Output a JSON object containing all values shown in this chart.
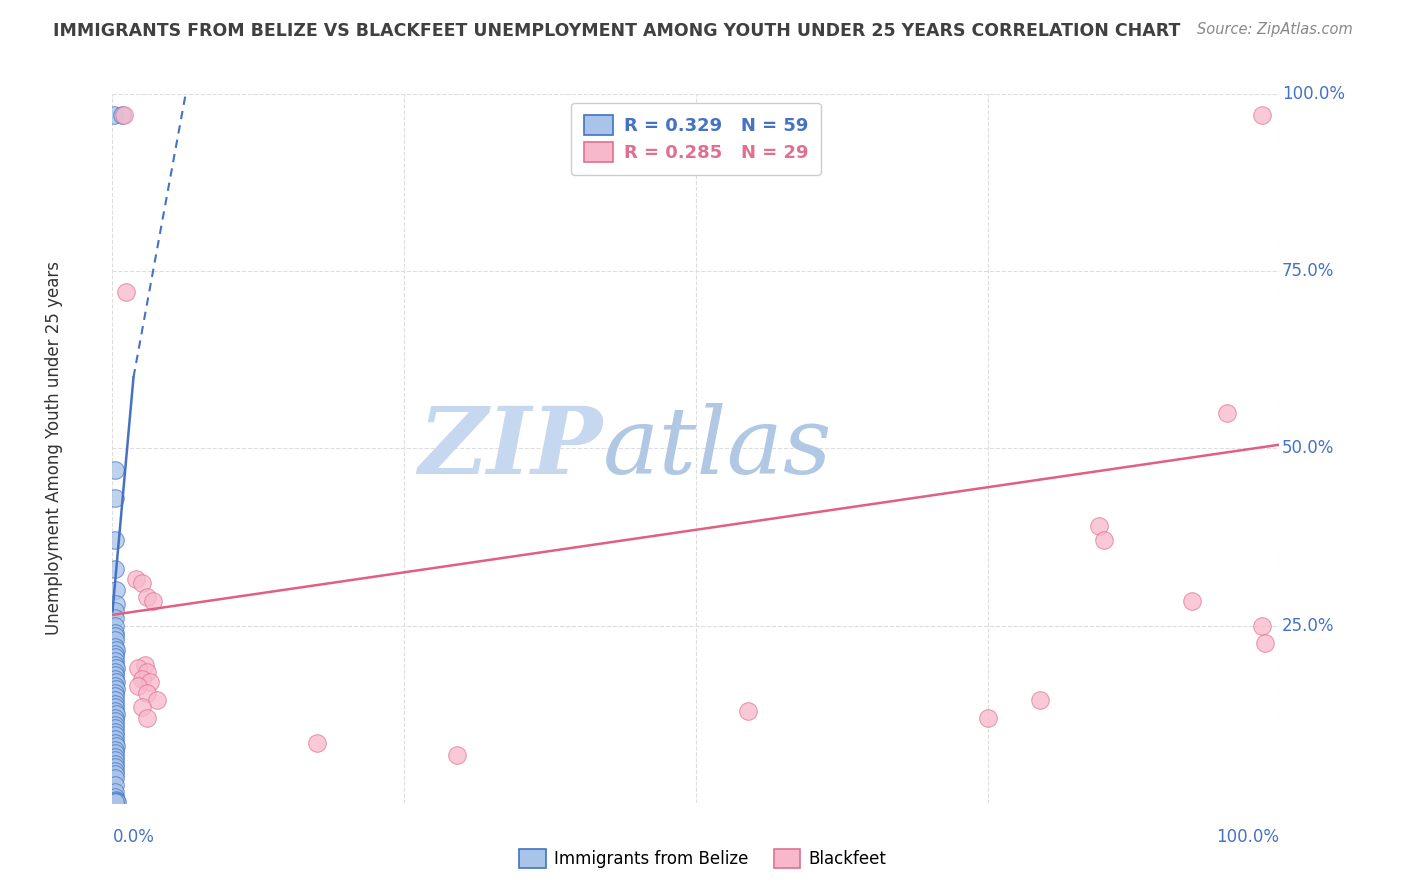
{
  "title": "IMMIGRANTS FROM BELIZE VS BLACKFEET UNEMPLOYMENT AMONG YOUTH UNDER 25 YEARS CORRELATION CHART",
  "source": "Source: ZipAtlas.com",
  "ylabel": "Unemployment Among Youth under 25 years",
  "xlim": [
    0,
    1.0
  ],
  "ylim": [
    0,
    1.0
  ],
  "ytick_positions": [
    1.0,
    0.75,
    0.5,
    0.25
  ],
  "ytick_labels": [
    "100.0%",
    "75.0%",
    "50.0%",
    "25.0%"
  ],
  "blue_scatter": [
    [
      0.001,
      0.97
    ],
    [
      0.008,
      0.97
    ],
    [
      0.002,
      0.47
    ],
    [
      0.002,
      0.43
    ],
    [
      0.002,
      0.37
    ],
    [
      0.002,
      0.33
    ],
    [
      0.003,
      0.3
    ],
    [
      0.003,
      0.28
    ],
    [
      0.002,
      0.27
    ],
    [
      0.002,
      0.26
    ],
    [
      0.002,
      0.25
    ],
    [
      0.002,
      0.24
    ],
    [
      0.002,
      0.235
    ],
    [
      0.002,
      0.23
    ],
    [
      0.002,
      0.22
    ],
    [
      0.003,
      0.215
    ],
    [
      0.002,
      0.21
    ],
    [
      0.002,
      0.205
    ],
    [
      0.002,
      0.2
    ],
    [
      0.002,
      0.195
    ],
    [
      0.003,
      0.19
    ],
    [
      0.002,
      0.185
    ],
    [
      0.002,
      0.18
    ],
    [
      0.002,
      0.175
    ],
    [
      0.003,
      0.17
    ],
    [
      0.002,
      0.165
    ],
    [
      0.003,
      0.16
    ],
    [
      0.002,
      0.155
    ],
    [
      0.002,
      0.15
    ],
    [
      0.002,
      0.145
    ],
    [
      0.002,
      0.14
    ],
    [
      0.002,
      0.135
    ],
    [
      0.002,
      0.13
    ],
    [
      0.003,
      0.125
    ],
    [
      0.002,
      0.12
    ],
    [
      0.002,
      0.115
    ],
    [
      0.002,
      0.11
    ],
    [
      0.002,
      0.105
    ],
    [
      0.002,
      0.1
    ],
    [
      0.002,
      0.095
    ],
    [
      0.002,
      0.09
    ],
    [
      0.002,
      0.085
    ],
    [
      0.003,
      0.08
    ],
    [
      0.002,
      0.075
    ],
    [
      0.002,
      0.07
    ],
    [
      0.002,
      0.065
    ],
    [
      0.002,
      0.06
    ],
    [
      0.002,
      0.055
    ],
    [
      0.002,
      0.05
    ],
    [
      0.002,
      0.045
    ],
    [
      0.002,
      0.04
    ],
    [
      0.002,
      0.035
    ],
    [
      0.002,
      0.025
    ],
    [
      0.002,
      0.015
    ],
    [
      0.002,
      0.008
    ],
    [
      0.003,
      0.004
    ],
    [
      0.003,
      0.002
    ],
    [
      0.004,
      0.001
    ],
    [
      0.002,
      0.001
    ]
  ],
  "pink_scatter": [
    [
      0.01,
      0.97
    ],
    [
      0.012,
      0.72
    ],
    [
      0.02,
      0.315
    ],
    [
      0.025,
      0.31
    ],
    [
      0.03,
      0.29
    ],
    [
      0.035,
      0.285
    ],
    [
      0.028,
      0.195
    ],
    [
      0.022,
      0.19
    ],
    [
      0.03,
      0.185
    ],
    [
      0.025,
      0.175
    ],
    [
      0.032,
      0.17
    ],
    [
      0.022,
      0.165
    ],
    [
      0.03,
      0.155
    ],
    [
      0.038,
      0.145
    ],
    [
      0.025,
      0.135
    ],
    [
      0.03,
      0.12
    ],
    [
      0.175,
      0.085
    ],
    [
      0.295,
      0.068
    ],
    [
      0.545,
      0.13
    ],
    [
      0.795,
      0.145
    ],
    [
      0.845,
      0.39
    ],
    [
      0.85,
      0.37
    ],
    [
      0.925,
      0.285
    ],
    [
      0.955,
      0.55
    ],
    [
      0.985,
      0.97
    ],
    [
      0.985,
      0.25
    ],
    [
      0.988,
      0.225
    ],
    [
      0.75,
      0.12
    ]
  ],
  "blue_line_solid": {
    "x": [
      0.0,
      0.018
    ],
    "y": [
      0.27,
      0.6
    ],
    "color": "#4472c4"
  },
  "blue_line_dashed": {
    "x": [
      0.018,
      0.065
    ],
    "y": [
      0.6,
      1.02
    ],
    "color": "#4472c4"
  },
  "pink_line": {
    "x": [
      0.0,
      1.0
    ],
    "y": [
      0.265,
      0.505
    ],
    "color": "#e06080"
  },
  "background_color": "#ffffff",
  "grid_color": "#dddddd",
  "title_color": "#404040",
  "watermark": "ZIPatlas",
  "watermark_zip_color": "#c8d8ee",
  "watermark_atlas_color": "#b8c8de",
  "blue_color": "#4472c4",
  "blue_fill": "#a8c4e8",
  "pink_color": "#e07090",
  "pink_fill": "#f8b8cc"
}
